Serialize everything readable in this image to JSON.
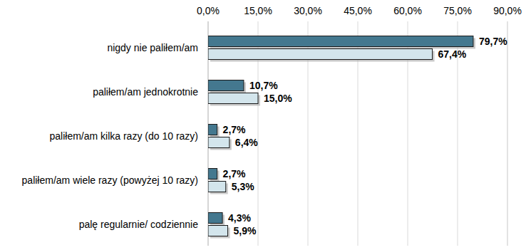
{
  "chart_data": {
    "type": "bar",
    "orientation": "horizontal",
    "categories": [
      "nigdy nie paliłem/am",
      "paliłem/am jednokrotnie",
      "paliłem/am kilka razy (do 10 razy)",
      "paliłem/am wiele razy (powyżej 10 razy)",
      "palę regularnie/ codziennie"
    ],
    "series": [
      {
        "color": "#44788f",
        "values": [
          79.7,
          10.7,
          2.7,
          2.7,
          4.3
        ],
        "value_labels": [
          "79,7%",
          "10,7%",
          "2,7%",
          "2,7%",
          "4,3%"
        ]
      },
      {
        "color": "#d3e5ec",
        "values": [
          67.4,
          15.0,
          6.4,
          5.3,
          5.9
        ],
        "value_labels": [
          "67,4%",
          "15,0%",
          "6,4%",
          "5,3%",
          "5,9%"
        ]
      }
    ],
    "xlim": [
      0,
      90
    ],
    "xticks": [
      {
        "value": 0,
        "label": "0,0%"
      },
      {
        "value": 15,
        "label": "15,0%"
      },
      {
        "value": 30,
        "label": "30,0%"
      },
      {
        "value": 45,
        "label": "45,0%"
      },
      {
        "value": 60,
        "label": "60,0%"
      },
      {
        "value": 75,
        "label": "75,0%"
      },
      {
        "value": 90,
        "label": "90,0%"
      }
    ],
    "grid": true,
    "data_labels": true
  }
}
